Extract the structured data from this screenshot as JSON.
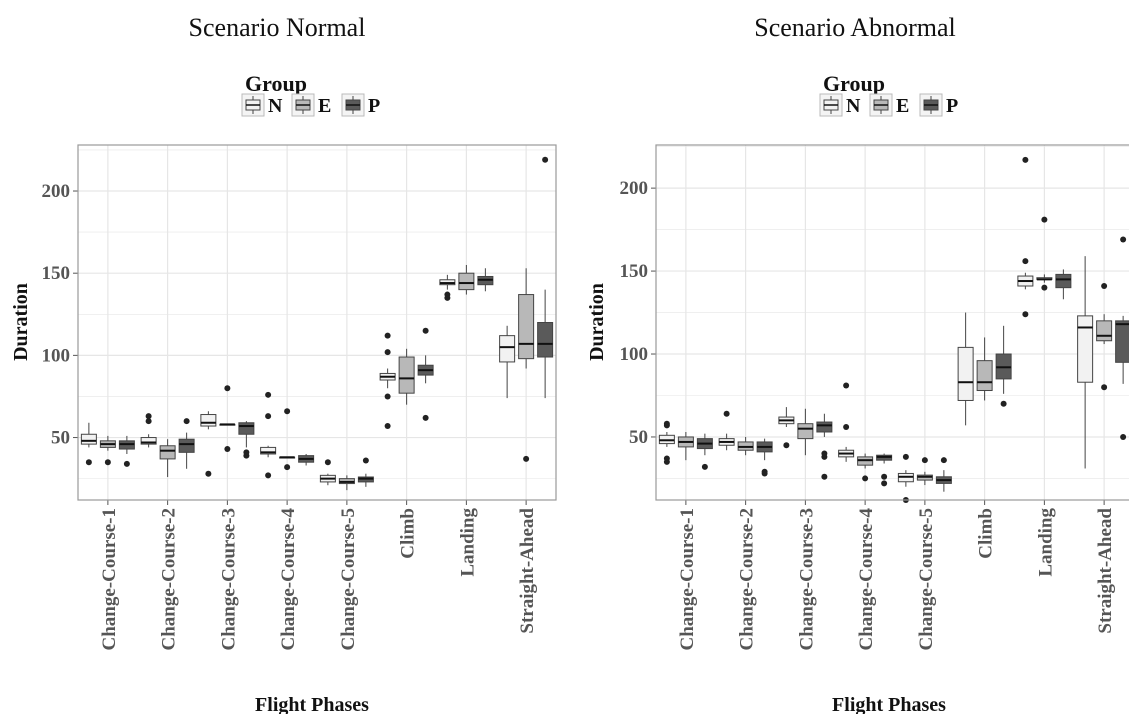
{
  "colors": {
    "N": "#f2f2f2",
    "E": "#b8b8b8",
    "P": "#5a5a5a",
    "outline": "#444444",
    "grid": "#e6e6e6",
    "panel_border": "#9a9a9a"
  },
  "chart_data": [
    {
      "type": "boxplot",
      "title": "Scenario Normal",
      "xlabel": "Flight Phases",
      "ylabel": "Duration",
      "ylim": [
        12,
        228
      ],
      "yticks": [
        50,
        100,
        150,
        200
      ],
      "legend": {
        "title": "Group",
        "placement": "top",
        "entries": [
          "N",
          "E",
          "P"
        ]
      },
      "categories": [
        "Change-Course-1",
        "Change-Course-2",
        "Change-Course-3",
        "Change-Course-4",
        "Change-Course-5",
        "Climb",
        "Landing",
        "Straight-Ahead"
      ],
      "series": [
        {
          "name": "N",
          "boxes": [
            {
              "min": 44,
              "q1": 46,
              "median": 48,
              "q3": 52,
              "max": 59,
              "outliers": [
                35
              ]
            },
            {
              "min": 44,
              "q1": 46,
              "median": 47,
              "q3": 50,
              "max": 52,
              "outliers": [
                60,
                63
              ]
            },
            {
              "min": 55,
              "q1": 57,
              "median": 59,
              "q3": 64,
              "max": 66,
              "outliers": [
                28
              ]
            },
            {
              "min": 38,
              "q1": 40,
              "median": 41,
              "q3": 44,
              "max": 45,
              "outliers": [
                27,
                63,
                76
              ]
            },
            {
              "min": 21,
              "q1": 23,
              "median": 25,
              "q3": 27,
              "max": 28,
              "outliers": [
                35
              ]
            },
            {
              "min": 80,
              "q1": 85,
              "median": 87,
              "q3": 89,
              "max": 92,
              "outliers": [
                57,
                75,
                102,
                112
              ]
            },
            {
              "min": 140,
              "q1": 143,
              "median": 144,
              "q3": 146,
              "max": 149,
              "outliers": [
                135,
                137
              ]
            },
            {
              "min": 74,
              "q1": 96,
              "median": 105,
              "q3": 112,
              "max": 118,
              "outliers": []
            }
          ]
        },
        {
          "name": "E",
          "boxes": [
            {
              "min": 42,
              "q1": 44,
              "median": 46,
              "q3": 48,
              "max": 51,
              "outliers": [
                35
              ]
            },
            {
              "min": 26,
              "q1": 37,
              "median": 42,
              "q3": 45,
              "max": 49,
              "outliers": []
            },
            {
              "min": 58,
              "q1": 58,
              "median": 58,
              "q3": 58,
              "max": 58,
              "outliers": [
                43,
                80
              ]
            },
            {
              "min": 38,
              "q1": 38,
              "median": 38,
              "q3": 38,
              "max": 38,
              "outliers": [
                32,
                66
              ]
            },
            {
              "min": 18,
              "q1": 22,
              "median": 23,
              "q3": 25,
              "max": 27,
              "outliers": []
            },
            {
              "min": 70,
              "q1": 77,
              "median": 86,
              "q3": 99,
              "max": 104,
              "outliers": []
            },
            {
              "min": 137,
              "q1": 140,
              "median": 144,
              "q3": 150,
              "max": 155,
              "outliers": []
            },
            {
              "min": 92,
              "q1": 98,
              "median": 107,
              "q3": 137,
              "max": 153,
              "outliers": [
                37
              ]
            }
          ]
        },
        {
          "name": "P",
          "boxes": [
            {
              "min": 40,
              "q1": 43,
              "median": 46,
              "q3": 48,
              "max": 51,
              "outliers": [
                34
              ]
            },
            {
              "min": 31,
              "q1": 41,
              "median": 46,
              "q3": 49,
              "max": 53,
              "outliers": [
                60
              ]
            },
            {
              "min": 44,
              "q1": 52,
              "median": 57,
              "q3": 59,
              "max": 60,
              "outliers": [
                39,
                41
              ]
            },
            {
              "min": 33,
              "q1": 35,
              "median": 37,
              "q3": 39,
              "max": 40,
              "outliers": []
            },
            {
              "min": 20,
              "q1": 23,
              "median": 25,
              "q3": 26,
              "max": 28,
              "outliers": [
                36
              ]
            },
            {
              "min": 83,
              "q1": 88,
              "median": 91,
              "q3": 94,
              "max": 100,
              "outliers": [
                62,
                115
              ]
            },
            {
              "min": 139,
              "q1": 143,
              "median": 146,
              "q3": 148,
              "max": 153,
              "outliers": []
            },
            {
              "min": 74,
              "q1": 99,
              "median": 107,
              "q3": 120,
              "max": 140,
              "outliers": [
                219
              ]
            }
          ]
        }
      ]
    },
    {
      "type": "boxplot",
      "title": "Scenario Abnormal",
      "xlabel": "Flight Phases",
      "ylabel": "Duration",
      "ylim": [
        12,
        226
      ],
      "yticks": [
        50,
        100,
        150,
        200
      ],
      "legend": {
        "title": "Group",
        "placement": "top",
        "entries": [
          "N",
          "E",
          "P"
        ]
      },
      "categories": [
        "Change-Course-1",
        "Change-Course-2",
        "Change-Course-3",
        "Change-Course-4",
        "Change-Course-5",
        "Climb",
        "Landing",
        "Straight-Ahead"
      ],
      "series": [
        {
          "name": "N",
          "boxes": [
            {
              "min": 44,
              "q1": 46,
              "median": 48,
              "q3": 51,
              "max": 53,
              "outliers": [
                35,
                37,
                57,
                58
              ]
            },
            {
              "min": 42,
              "q1": 45,
              "median": 47,
              "q3": 49,
              "max": 52,
              "outliers": [
                64
              ]
            },
            {
              "min": 56,
              "q1": 58,
              "median": 60,
              "q3": 62,
              "max": 68,
              "outliers": [
                45
              ]
            },
            {
              "min": 35,
              "q1": 38,
              "median": 40,
              "q3": 42,
              "max": 44,
              "outliers": [
                56,
                81
              ]
            },
            {
              "min": 20,
              "q1": 23,
              "median": 26,
              "q3": 28,
              "max": 30,
              "outliers": [
                12,
                38
              ]
            },
            {
              "min": 57,
              "q1": 72,
              "median": 83,
              "q3": 104,
              "max": 125,
              "outliers": []
            },
            {
              "min": 139,
              "q1": 141,
              "median": 144,
              "q3": 147,
              "max": 149,
              "outliers": [
                124,
                156,
                217
              ]
            },
            {
              "min": 31,
              "q1": 83,
              "median": 116,
              "q3": 123,
              "max": 159,
              "outliers": []
            }
          ]
        },
        {
          "name": "E",
          "boxes": [
            {
              "min": 36,
              "q1": 44,
              "median": 47,
              "q3": 50,
              "max": 53,
              "outliers": []
            },
            {
              "min": 39,
              "q1": 42,
              "median": 44,
              "q3": 47,
              "max": 50,
              "outliers": []
            },
            {
              "min": 39,
              "q1": 49,
              "median": 55,
              "q3": 58,
              "max": 67,
              "outliers": []
            },
            {
              "min": 31,
              "q1": 33,
              "median": 36,
              "q3": 38,
              "max": 40,
              "outliers": [
                25
              ]
            },
            {
              "min": 21,
              "q1": 24,
              "median": 26,
              "q3": 27,
              "max": 29,
              "outliers": [
                36
              ]
            },
            {
              "min": 72,
              "q1": 78,
              "median": 83,
              "q3": 96,
              "max": 110,
              "outliers": []
            },
            {
              "min": 143,
              "q1": 145,
              "median": 145,
              "q3": 146,
              "max": 148,
              "outliers": [
                140,
                181
              ]
            },
            {
              "min": 106,
              "q1": 108,
              "median": 111,
              "q3": 120,
              "max": 124,
              "outliers": [
                80,
                141
              ]
            }
          ]
        },
        {
          "name": "P",
          "boxes": [
            {
              "min": 39,
              "q1": 43,
              "median": 46,
              "q3": 49,
              "max": 52,
              "outliers": [
                32
              ]
            },
            {
              "min": 36,
              "q1": 41,
              "median": 44,
              "q3": 47,
              "max": 49,
              "outliers": [
                28,
                29
              ]
            },
            {
              "min": 50,
              "q1": 53,
              "median": 57,
              "q3": 59,
              "max": 64,
              "outliers": [
                26,
                38,
                40
              ]
            },
            {
              "min": 34,
              "q1": 36,
              "median": 38,
              "q3": 39,
              "max": 40,
              "outliers": [
                22,
                26
              ]
            },
            {
              "min": 17,
              "q1": 22,
              "median": 24,
              "q3": 26,
              "max": 30,
              "outliers": [
                36
              ]
            },
            {
              "min": 76,
              "q1": 85,
              "median": 92,
              "q3": 100,
              "max": 117,
              "outliers": [
                70
              ]
            },
            {
              "min": 133,
              "q1": 140,
              "median": 145,
              "q3": 148,
              "max": 151,
              "outliers": []
            },
            {
              "min": 82,
              "q1": 95,
              "median": 118,
              "q3": 120,
              "max": 123,
              "outliers": [
                50,
                169
              ]
            }
          ]
        }
      ]
    }
  ]
}
